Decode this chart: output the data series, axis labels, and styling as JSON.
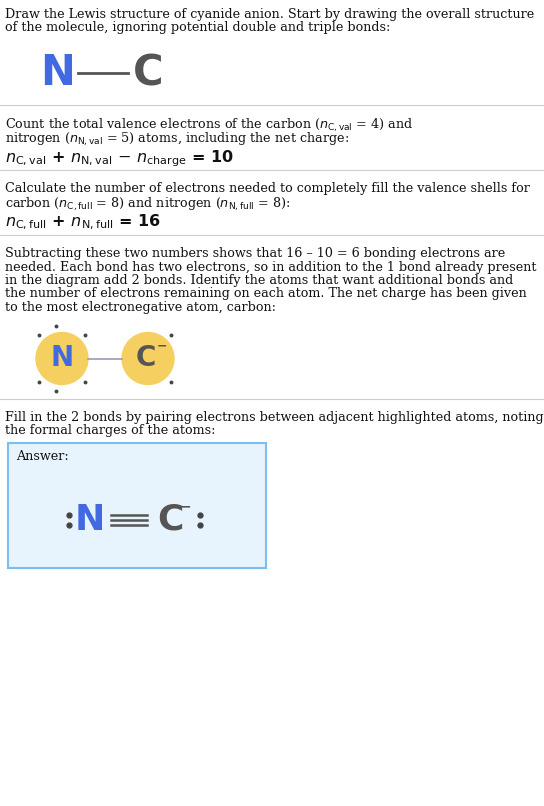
{
  "N_color": "#4169E1",
  "C_color": "#555555",
  "C_color_dark": "#444444",
  "atom_bg_color": "#F5D060",
  "answer_bg_color": "#E8F4FD",
  "answer_border_color": "#7ABFEF",
  "dot_color": "#444444",
  "bond_color_single": "#9999BB",
  "sep_color": "#CCCCCC",
  "text_color": "#111111",
  "text_fontsize": 9.2,
  "eq_fontsize": 11.5,
  "title_line1": "Draw the Lewis structure of cyanide anion. Start by drawing the overall structure",
  "title_line2": "of the molecule, ignoring potential double and triple bonds:",
  "s1_line1": "Count the total valence electrons of the carbon (",
  "s1_line2": ") and",
  "s1_line3": "nitrogen (",
  "s1_line4": " = 5) atoms, including the net charge:",
  "s2_line1": "Calculate the number of electrons needed to completely fill the valence shells for",
  "s2_line2": "carbon (",
  "s2_line3": ") and nitrogen (",
  "s2_line4": "):",
  "s3_lines": [
    "Subtracting these two numbers shows that 16 – 10 = 6 bonding electrons are",
    "needed. Each bond has two electrons, so in addition to the 1 bond already present",
    "in the diagram add 2 bonds. Identify the atoms that want additional bonds and",
    "the number of electrons remaining on each atom. The net charge has been given",
    "to the most electronegative atom, carbon:"
  ],
  "s4_line1": "Fill in the 2 bonds by pairing electrons between adjacent highlighted atoms, noting",
  "s4_line2": "the formal charges of the atoms:"
}
